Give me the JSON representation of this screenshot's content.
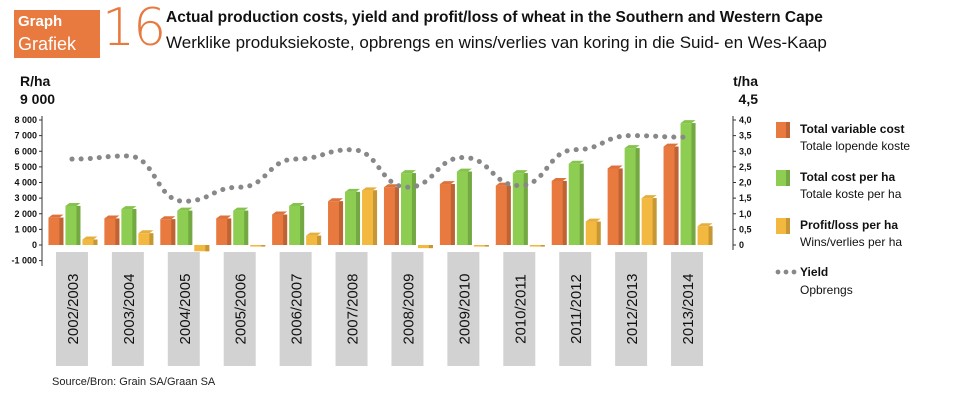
{
  "header": {
    "badge_line1": "Graph",
    "badge_line2": "Grafiek",
    "number": "16",
    "title_en": "Actual production costs, yield and profit/loss of wheat in the Southern and Western Cape",
    "title_af": "Werklike produksiekoste, opbrengs en wins/verlies van koring in die Suid- en Wes-Kaap"
  },
  "source": "Source/Bron: Grain SA/Graan SA",
  "colors": {
    "orange": "#e8793f",
    "green": "#8dcd52",
    "yellow": "#f2b840",
    "yield": "#888888",
    "band": "#d2d2d2"
  },
  "chart_data": {
    "type": "bar",
    "categories": [
      "2002/2003",
      "2003/2004",
      "2004/2005",
      "2005/2006",
      "2006/2007",
      "2007/2008",
      "2008/2009",
      "2009/2010",
      "2010/2011",
      "2011/2012",
      "2012/2013",
      "2013/2014"
    ],
    "y_left": {
      "unit": "R/ha",
      "extra_label": "9 000",
      "ylim": [
        -1000,
        8000
      ],
      "ticks": [
        "8 000",
        "7 000",
        "6 000",
        "5 000",
        "4 000",
        "3 000",
        "2 000",
        "1 000",
        "0",
        "-1 000"
      ]
    },
    "y_right": {
      "unit": "t/ha",
      "extra_label": "4,5",
      "ylim": [
        0,
        4.0
      ],
      "ticks": [
        "4,0",
        "3,5",
        "3,0",
        "2,5",
        "2,0",
        "1,5",
        "1,0",
        "0,5",
        "0"
      ]
    },
    "series": [
      {
        "name": "Total variable cost",
        "name_af": "Totale lopende koste",
        "type": "bar",
        "color": "#e8793f",
        "values": [
          1750,
          1700,
          1650,
          1700,
          1950,
          2800,
          3700,
          3900,
          3800,
          4100,
          4900,
          6300
        ]
      },
      {
        "name": "Total cost per ha",
        "name_af": "Totale koste per ha",
        "type": "bar",
        "color": "#8dcd52",
        "values": [
          2500,
          2300,
          2200,
          2200,
          2500,
          3400,
          4600,
          4700,
          4600,
          5200,
          6200,
          7800
        ]
      },
      {
        "name": "Profit/loss per ha",
        "name_af": "Wins/verlies per ha",
        "type": "bar",
        "color": "#f2b840",
        "values": [
          350,
          750,
          -400,
          -100,
          600,
          3500,
          -200,
          -100,
          -100,
          1500,
          3000,
          1200
        ]
      },
      {
        "name": "Yield",
        "name_af": "Opbrengs",
        "type": "line",
        "style": "dotted",
        "color": "#888888",
        "axis": "right",
        "values": [
          2.75,
          2.85,
          1.4,
          1.85,
          2.75,
          3.05,
          1.85,
          2.8,
          1.9,
          3.05,
          3.5,
          3.45
        ]
      }
    ],
    "legend_position": "right"
  }
}
